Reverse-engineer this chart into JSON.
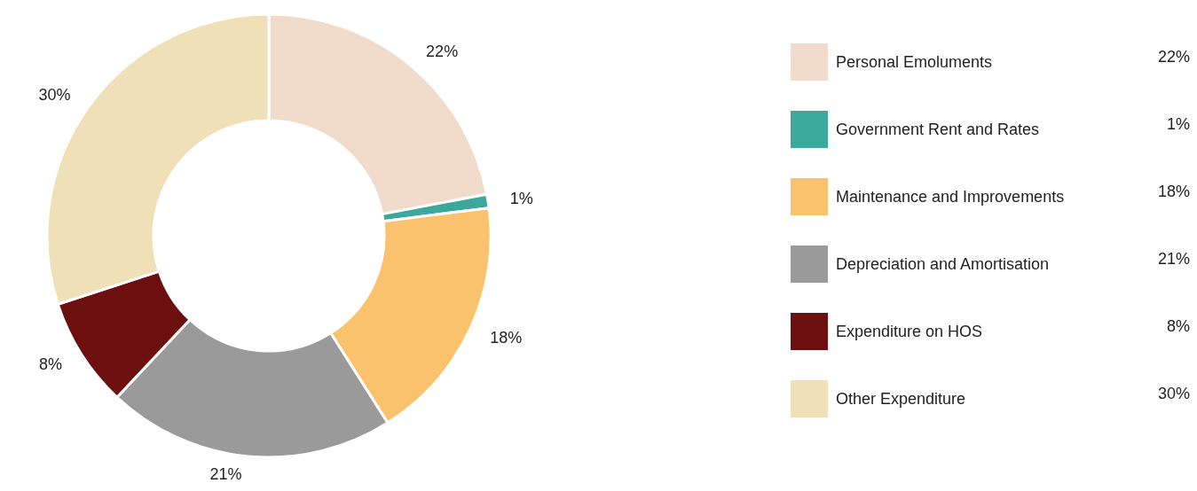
{
  "chart_data": {
    "type": "donut",
    "categories": [
      "Personal Emoluments",
      "Government Rent and Rates",
      "Maintenance and Improvements",
      "Depreciation and Amortisation",
      "Expenditure on HOS",
      "Other Expenditure"
    ],
    "values": [
      22,
      1,
      18,
      21,
      8,
      30
    ],
    "value_labels": [
      "22%",
      "1%",
      "18%",
      "21%",
      "8%",
      "30%"
    ],
    "colors": [
      "#f1dccb",
      "#3aa89a",
      "#fbc26e",
      "#9a9a9a",
      "#6e0f0f",
      "#f0e0b8"
    ],
    "legend": "right"
  }
}
